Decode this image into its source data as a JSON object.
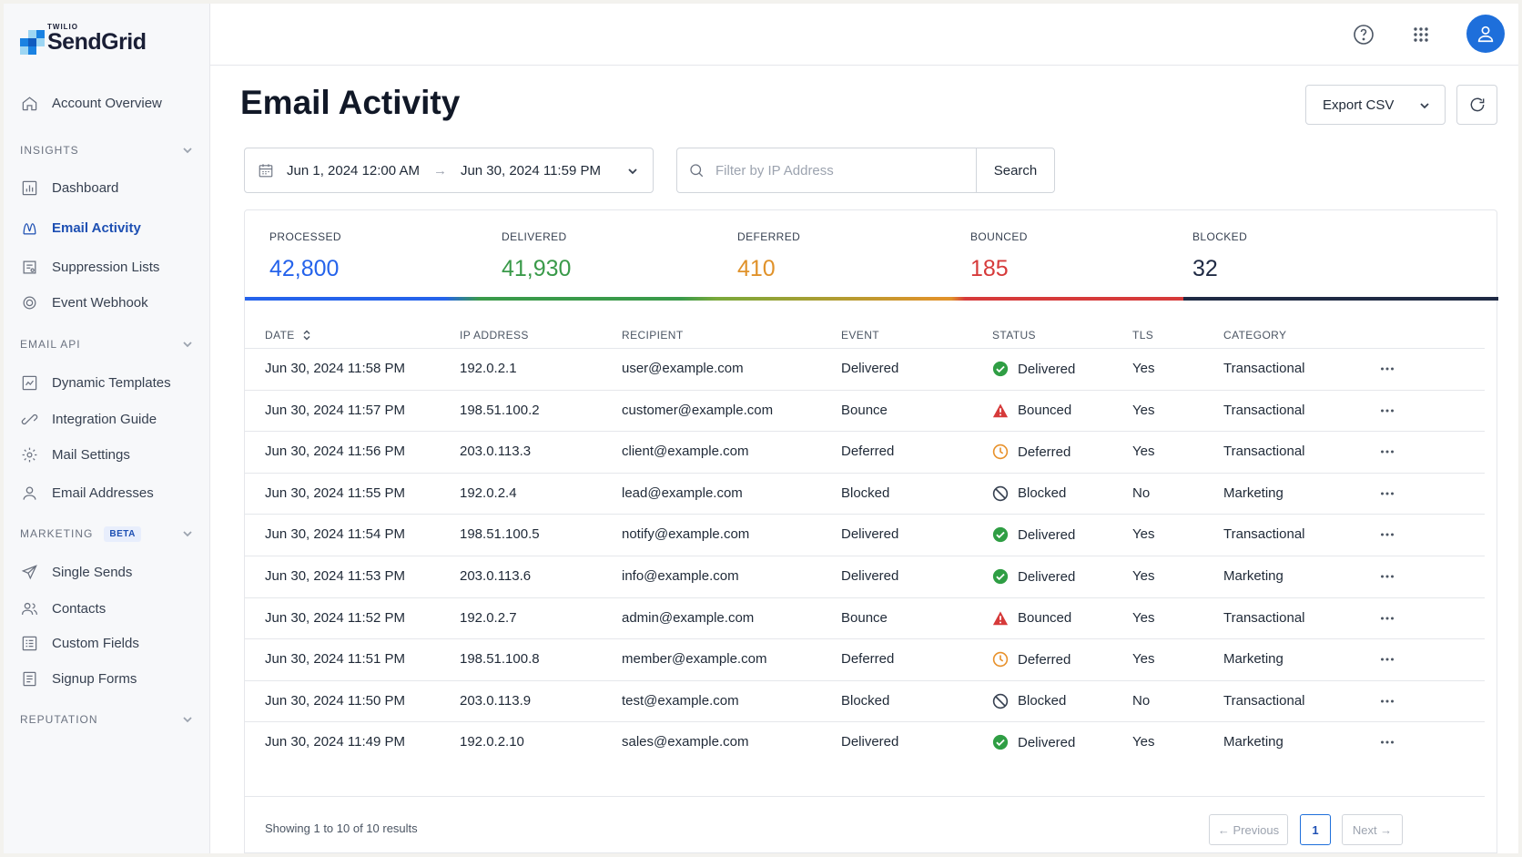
{
  "brand": {
    "small": "TWILIO",
    "big": "SendGrid"
  },
  "sidebar": {
    "account_overview": "Account Overview",
    "sections": {
      "insights": "INSIGHTS",
      "email_api": "EMAIL API",
      "marketing": "MARKETING",
      "marketing_badge": "BETA",
      "reputation": "REPUTATION"
    },
    "insights_items": [
      {
        "label": "Dashboard",
        "icon": "dashboard-icon"
      },
      {
        "label": "Email Activity",
        "icon": "activity-icon",
        "active": true
      },
      {
        "label": "Suppression Lists",
        "icon": "suppression-icon"
      },
      {
        "label": "Event Webhook",
        "icon": "webhook-icon"
      }
    ],
    "email_api_items": [
      {
        "label": "Dynamic Templates",
        "icon": "template-icon"
      },
      {
        "label": "Integration Guide",
        "icon": "integration-icon"
      },
      {
        "label": "Mail Settings",
        "icon": "gear-icon"
      },
      {
        "label": "Email Addresses",
        "icon": "user-icon"
      }
    ],
    "marketing_items": [
      {
        "label": "Single Sends",
        "icon": "send-icon"
      },
      {
        "label": "Contacts",
        "icon": "contacts-icon"
      },
      {
        "label": "Custom Fields",
        "icon": "fields-icon"
      },
      {
        "label": "Signup Forms",
        "icon": "form-icon"
      }
    ]
  },
  "header": {
    "title": "Email Activity",
    "export_label": "Export CSV"
  },
  "filters": {
    "date_start": "Jun 1, 2024 12:00 AM",
    "date_arrow": "→",
    "date_end": "Jun 30, 2024 11:59 PM",
    "ip_placeholder": "Filter by IP Address",
    "search_label": "Search"
  },
  "stats": [
    {
      "label": "PROCESSED",
      "value": "42,800",
      "color": "#2563eb"
    },
    {
      "label": "DELIVERED",
      "value": "41,930",
      "color": "#3a9a4a"
    },
    {
      "label": "DEFERRED",
      "value": "410",
      "color": "#e0922a"
    },
    {
      "label": "BOUNCED",
      "value": "185",
      "color": "#d63a3a"
    },
    {
      "label": "BLOCKED",
      "value": "32",
      "color": "#1f2a44"
    }
  ],
  "table": {
    "columns": [
      "DATE",
      "IP ADDRESS",
      "RECIPIENT",
      "EVENT",
      "STATUS",
      "TLS",
      "CATEGORY"
    ],
    "rows": [
      {
        "date": "Jun 30, 2024 11:58 PM",
        "ip": "192.0.2.1",
        "recipient": "user@example.com",
        "event": "Delivered",
        "status": "Delivered",
        "tls": "Yes",
        "category": "Transactional"
      },
      {
        "date": "Jun 30, 2024 11:57 PM",
        "ip": "198.51.100.2",
        "recipient": "customer@example.com",
        "event": "Bounce",
        "status": "Bounced",
        "tls": "Yes",
        "category": "Transactional"
      },
      {
        "date": "Jun 30, 2024 11:56 PM",
        "ip": "203.0.113.3",
        "recipient": "client@example.com",
        "event": "Deferred",
        "status": "Deferred",
        "tls": "Yes",
        "category": "Transactional"
      },
      {
        "date": "Jun 30, 2024 11:55 PM",
        "ip": "192.0.2.4",
        "recipient": "lead@example.com",
        "event": "Blocked",
        "status": "Blocked",
        "tls": "No",
        "category": "Marketing"
      },
      {
        "date": "Jun 30, 2024 11:54 PM",
        "ip": "198.51.100.5",
        "recipient": "notify@example.com",
        "event": "Delivered",
        "status": "Delivered",
        "tls": "Yes",
        "category": "Transactional"
      },
      {
        "date": "Jun 30, 2024 11:53 PM",
        "ip": "203.0.113.6",
        "recipient": "info@example.com",
        "event": "Delivered",
        "status": "Delivered",
        "tls": "Yes",
        "category": "Marketing"
      },
      {
        "date": "Jun 30, 2024 11:52 PM",
        "ip": "192.0.2.7",
        "recipient": "admin@example.com",
        "event": "Bounce",
        "status": "Bounced",
        "tls": "Yes",
        "category": "Transactional"
      },
      {
        "date": "Jun 30, 2024 11:51 PM",
        "ip": "198.51.100.8",
        "recipient": "member@example.com",
        "event": "Deferred",
        "status": "Deferred",
        "tls": "Yes",
        "category": "Marketing"
      },
      {
        "date": "Jun 30, 2024 11:50 PM",
        "ip": "203.0.113.9",
        "recipient": "test@example.com",
        "event": "Blocked",
        "status": "Blocked",
        "tls": "No",
        "category": "Transactional"
      },
      {
        "date": "Jun 30, 2024 11:49 PM",
        "ip": "192.0.2.10",
        "recipient": "sales@example.com",
        "event": "Delivered",
        "status": "Delivered",
        "tls": "Yes",
        "category": "Marketing"
      }
    ]
  },
  "pagination": {
    "summary": "Showing 1 to 10 of 10 results",
    "previous": "← Previous",
    "current": "1",
    "next": "Next →"
  },
  "colors": {
    "accent": "#1e6fdb",
    "delivered": "#2f9e44",
    "bounced": "#d63a3a",
    "deferred": "#e8912b",
    "blocked": "#374151"
  }
}
